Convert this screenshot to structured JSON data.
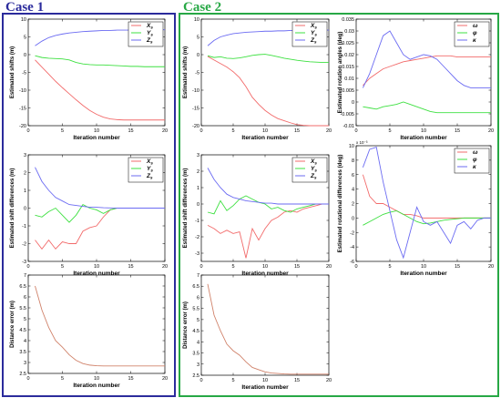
{
  "cases": [
    {
      "title": "Case 1",
      "color": "#2b2b9c"
    },
    {
      "title": "Case 2",
      "color": "#27a845"
    }
  ],
  "series_colors": {
    "red": "#f26b6b",
    "green": "#3de040",
    "blue": "#6b6bf2",
    "dist": "#d0826a"
  },
  "chart_data": [
    {
      "id": "c1-shifts",
      "case": "Case 1",
      "type": "line",
      "ylabel": "Estimated shifts (m)",
      "xlabel": "",
      "xlim": [
        0,
        20
      ],
      "ylim": [
        -20,
        10
      ],
      "xticks": [
        0,
        5,
        10,
        15,
        20
      ],
      "yticks": [
        -20,
        -15,
        -10,
        -5,
        0,
        5,
        10
      ],
      "x": [
        1,
        2,
        3,
        4,
        5,
        6,
        7,
        8,
        9,
        10,
        11,
        12,
        13,
        14,
        15,
        16,
        17,
        18,
        19,
        20
      ],
      "series": [
        {
          "name": "X_s",
          "color": "#f26b6b",
          "values": [
            -1.5,
            -3.5,
            -5.5,
            -7.5,
            -9.3,
            -11,
            -12.7,
            -14.3,
            -15.7,
            -16.8,
            -17.6,
            -18.1,
            -18.3,
            -18.4,
            -18.4,
            -18.4,
            -18.4,
            -18.4,
            -18.4,
            -18.4
          ]
        },
        {
          "name": "Y_s",
          "color": "#3de040",
          "values": [
            -0.3,
            -0.8,
            -1,
            -1.1,
            -1.2,
            -1.5,
            -2.2,
            -2.6,
            -2.8,
            -2.9,
            -2.9,
            -3,
            -3.1,
            -3.2,
            -3.3,
            -3.3,
            -3.4,
            -3.4,
            -3.4,
            -3.4
          ]
        },
        {
          "name": "Z_s",
          "color": "#6b6bf2",
          "values": [
            2.5,
            3.8,
            4.8,
            5.4,
            5.8,
            6.1,
            6.3,
            6.5,
            6.6,
            6.7,
            6.8,
            6.8,
            6.9,
            6.9,
            6.9,
            7,
            7,
            7,
            7,
            7
          ]
        }
      ],
      "legend": [
        "X_s",
        "Y_s",
        "Z_s"
      ]
    },
    {
      "id": "c1-diffs",
      "case": "Case 1",
      "type": "line",
      "ylabel": "Estimated shift differences (m)",
      "xlabel": "",
      "xlim": [
        0,
        20
      ],
      "ylim": [
        -3,
        3
      ],
      "xticks": [
        0,
        5,
        10,
        15,
        20
      ],
      "yticks": [
        -3,
        -2,
        -1,
        0,
        1,
        2,
        3
      ],
      "x": [
        1,
        2,
        3,
        4,
        5,
        6,
        7,
        8,
        9,
        10,
        11,
        12,
        13,
        14,
        15,
        16,
        17,
        18,
        19,
        20
      ],
      "series": [
        {
          "name": "X_s",
          "color": "#f26b6b",
          "values": [
            -1.8,
            -2.3,
            -1.8,
            -2.3,
            -1.9,
            -2,
            -2,
            -1.3,
            -1.1,
            -1,
            -0.5,
            -0.1,
            0,
            0,
            0,
            0,
            0,
            0,
            0,
            0
          ]
        },
        {
          "name": "Y_s",
          "color": "#3de040",
          "values": [
            -0.4,
            -0.5,
            -0.2,
            0,
            -0.4,
            -0.8,
            -0.4,
            0.2,
            0,
            -0.1,
            -0.3,
            -0.1,
            0,
            0,
            0,
            0,
            0,
            0,
            0,
            0
          ]
        },
        {
          "name": "Z_s",
          "color": "#6b6bf2",
          "values": [
            2.3,
            1.5,
            1,
            0.6,
            0.4,
            0.2,
            0.15,
            0.1,
            0.05,
            0.05,
            0.02,
            0.01,
            0,
            0,
            0,
            0,
            0,
            0,
            0,
            0
          ]
        }
      ],
      "legend": [
        "X_s",
        "Y_s",
        "Z_s"
      ]
    },
    {
      "id": "c1-dist",
      "case": "Case 1",
      "type": "line",
      "ylabel": "Distance error (m)",
      "xlabel": "",
      "xlim": [
        0,
        20
      ],
      "ylim": [
        2.5,
        7
      ],
      "xticks": [
        0,
        5,
        10,
        15,
        20
      ],
      "yticks": [
        2.5,
        3,
        3.5,
        4,
        4.5,
        5,
        5.5,
        6,
        6.5,
        7
      ],
      "x": [
        1,
        2,
        3,
        4,
        5,
        6,
        7,
        8,
        9,
        10,
        11,
        12,
        13,
        14,
        15,
        16,
        17,
        18,
        19,
        20
      ],
      "series": [
        {
          "name": "",
          "color": "#d0826a",
          "values": [
            6.5,
            5.4,
            4.6,
            4,
            3.7,
            3.35,
            3.1,
            2.95,
            2.88,
            2.85,
            2.84,
            2.84,
            2.84,
            2.84,
            2.84,
            2.84,
            2.84,
            2.84,
            2.84,
            2.84
          ]
        }
      ],
      "legend": []
    },
    {
      "id": "c2-shifts",
      "case": "Case 2",
      "type": "line",
      "ylabel": "Estimated shifts (m)",
      "xlabel": "",
      "xlim": [
        0,
        20
      ],
      "ylim": [
        -20,
        10
      ],
      "xticks": [
        0,
        5,
        10,
        15,
        20
      ],
      "yticks": [
        -20,
        -15,
        -10,
        -5,
        0,
        5,
        10
      ],
      "x": [
        1,
        2,
        3,
        4,
        5,
        6,
        7,
        8,
        9,
        10,
        11,
        12,
        13,
        14,
        15,
        16,
        17,
        18,
        19,
        20
      ],
      "series": [
        {
          "name": "X_s",
          "color": "#f26b6b",
          "values": [
            -0.5,
            -1.5,
            -2.5,
            -3.5,
            -4.8,
            -6.5,
            -9,
            -12,
            -14,
            -15.7,
            -17,
            -18,
            -18.6,
            -19.2,
            -19.7,
            -19.9,
            -20,
            -20,
            -20,
            -20
          ]
        },
        {
          "name": "Y_s",
          "color": "#3de040",
          "values": [
            -0.3,
            -0.8,
            -0.6,
            -1,
            -1.1,
            -0.9,
            -0.6,
            -0.2,
            0,
            0.1,
            -0.2,
            -0.6,
            -1,
            -1.3,
            -1.6,
            -1.8,
            -2,
            -2.1,
            -2.2,
            -2.2
          ]
        },
        {
          "name": "Z_s",
          "color": "#6b6bf2",
          "values": [
            2.5,
            4,
            5,
            5.5,
            5.9,
            6.1,
            6.3,
            6.4,
            6.5,
            6.6,
            6.6,
            6.7,
            6.7,
            6.8,
            6.8,
            6.8,
            6.9,
            6.9,
            6.9,
            6.9
          ]
        }
      ],
      "legend": [
        "X_s",
        "Y_s",
        "Z_s"
      ]
    },
    {
      "id": "c2-angles",
      "case": "Case 2",
      "type": "line",
      "ylabel": "Estimated rotation angles (deg)",
      "xlabel": "",
      "xlim": [
        0,
        20
      ],
      "ylim": [
        -0.01,
        0.035
      ],
      "xticks": [
        0,
        5,
        10,
        15,
        20
      ],
      "yticks": [
        -0.01,
        -0.005,
        0,
        0.005,
        0.01,
        0.015,
        0.02,
        0.025,
        0.03,
        0.035
      ],
      "x": [
        1,
        2,
        3,
        4,
        5,
        6,
        7,
        8,
        9,
        10,
        11,
        12,
        13,
        14,
        15,
        16,
        17,
        18,
        19,
        20
      ],
      "series": [
        {
          "name": "ω",
          "color": "#f26b6b",
          "values": [
            0.007,
            0.01,
            0.012,
            0.014,
            0.015,
            0.016,
            0.017,
            0.0175,
            0.018,
            0.0185,
            0.019,
            0.0195,
            0.0195,
            0.0195,
            0.019,
            0.019,
            0.019,
            0.019,
            0.019,
            0.019
          ]
        },
        {
          "name": "φ",
          "color": "#3de040",
          "values": [
            -0.002,
            -0.0025,
            -0.003,
            -0.002,
            -0.0015,
            -0.001,
            0,
            -0.001,
            -0.002,
            -0.003,
            -0.004,
            -0.0045,
            -0.0045,
            -0.0045,
            -0.0045,
            -0.0045,
            -0.0045,
            -0.0045,
            -0.0045,
            -0.0045
          ]
        },
        {
          "name": "κ",
          "color": "#6b6bf2",
          "values": [
            0.006,
            0.012,
            0.02,
            0.028,
            0.03,
            0.025,
            0.02,
            0.018,
            0.019,
            0.02,
            0.0195,
            0.018,
            0.015,
            0.012,
            0.009,
            0.007,
            0.006,
            0.006,
            0.006,
            0.006
          ]
        }
      ],
      "legend": [
        "ω",
        "φ",
        "κ"
      ]
    },
    {
      "id": "c2-diffs",
      "case": "Case 2",
      "type": "line",
      "ylabel": "Estimated shift differences (m)",
      "xlabel": "",
      "xlim": [
        0,
        20
      ],
      "ylim": [
        -3.5,
        3
      ],
      "xticks": [
        0,
        5,
        10,
        15,
        20
      ],
      "yticks": [
        -3,
        -2,
        -1,
        0,
        1,
        2,
        3
      ],
      "x": [
        1,
        2,
        3,
        4,
        5,
        6,
        7,
        8,
        9,
        10,
        11,
        12,
        13,
        14,
        15,
        16,
        17,
        18,
        19,
        20
      ],
      "series": [
        {
          "name": "X_s",
          "color": "#f26b6b",
          "values": [
            -1.3,
            -1.5,
            -1.8,
            -1.6,
            -1.8,
            -1.7,
            -3.3,
            -1.5,
            -2.2,
            -1.5,
            -1,
            -0.8,
            -0.5,
            -0.4,
            -0.5,
            -0.3,
            -0.2,
            -0.1,
            0,
            0
          ]
        },
        {
          "name": "Y_s",
          "color": "#3de040",
          "values": [
            -0.5,
            -0.6,
            0.2,
            -0.4,
            -0.1,
            0.3,
            0.5,
            0.3,
            0.1,
            0,
            -0.3,
            -0.2,
            -0.4,
            -0.5,
            -0.3,
            -0.2,
            -0.1,
            0,
            0,
            0
          ]
        },
        {
          "name": "Z_s",
          "color": "#6b6bf2",
          "values": [
            2.2,
            1.5,
            1,
            0.6,
            0.4,
            0.3,
            0.2,
            0.15,
            0.1,
            0.05,
            0.05,
            0,
            0,
            0,
            0,
            0,
            0,
            0,
            0,
            0
          ]
        }
      ],
      "legend": [
        "X_s",
        "Y_s",
        "Z_s"
      ]
    },
    {
      "id": "c2-rotdiffs",
      "case": "Case 2",
      "type": "line",
      "ylabel": "Estimated rotational differences (deg)",
      "xlabel": "",
      "exponent": "x 10⁻³",
      "xlim": [
        0,
        20
      ],
      "ylim": [
        -6,
        10
      ],
      "xticks": [
        0,
        5,
        10,
        15,
        20
      ],
      "yticks": [
        -6,
        -4,
        -2,
        0,
        2,
        4,
        6,
        8,
        10
      ],
      "x": [
        1,
        2,
        3,
        4,
        5,
        6,
        7,
        8,
        9,
        10,
        11,
        12,
        13,
        14,
        15,
        16,
        17,
        18,
        19,
        20
      ],
      "series": [
        {
          "name": "ω",
          "color": "#f26b6b",
          "values": [
            6,
            3,
            2,
            2,
            1.5,
            1,
            0.5,
            0.5,
            0.3,
            0,
            0,
            0,
            0,
            0,
            0,
            0,
            0,
            0,
            0,
            0
          ]
        },
        {
          "name": "φ",
          "color": "#3de040",
          "values": [
            -1,
            -0.5,
            0,
            0.5,
            0.8,
            1,
            0.5,
            0,
            -0.5,
            -0.8,
            -0.7,
            -0.5,
            -0.3,
            -0.2,
            -0.1,
            0,
            0,
            0,
            0,
            0
          ]
        },
        {
          "name": "κ",
          "color": "#6b6bf2",
          "values": [
            7,
            9.5,
            9.8,
            5,
            1,
            -3,
            -5.5,
            -2,
            1.5,
            -0.5,
            -1,
            -0.5,
            -2,
            -3.5,
            -1,
            -0.5,
            -1.5,
            -0.3,
            0,
            0
          ]
        }
      ],
      "legend": [
        "ω",
        "φ",
        "κ"
      ]
    },
    {
      "id": "c2-dist",
      "case": "Case 2",
      "type": "line",
      "ylabel": "Distance error (m)",
      "xlabel": "",
      "xlim": [
        0,
        20
      ],
      "ylim": [
        2.5,
        7
      ],
      "xticks": [
        0,
        5,
        10,
        15,
        20
      ],
      "yticks": [
        2.5,
        3,
        3.5,
        4,
        4.5,
        5,
        5.5,
        6,
        6.5,
        7
      ],
      "x": [
        1,
        2,
        3,
        4,
        5,
        6,
        7,
        8,
        9,
        10,
        11,
        12,
        13,
        14,
        15,
        16,
        17,
        18,
        19,
        20
      ],
      "series": [
        {
          "name": "",
          "color": "#d0826a",
          "values": [
            6.6,
            5.2,
            4.5,
            3.9,
            3.6,
            3.4,
            3.1,
            2.85,
            2.75,
            2.65,
            2.6,
            2.58,
            2.56,
            2.55,
            2.55,
            2.55,
            2.55,
            2.55,
            2.55,
            2.55
          ]
        }
      ],
      "legend": []
    }
  ],
  "xlabel_text": "Iteration number"
}
